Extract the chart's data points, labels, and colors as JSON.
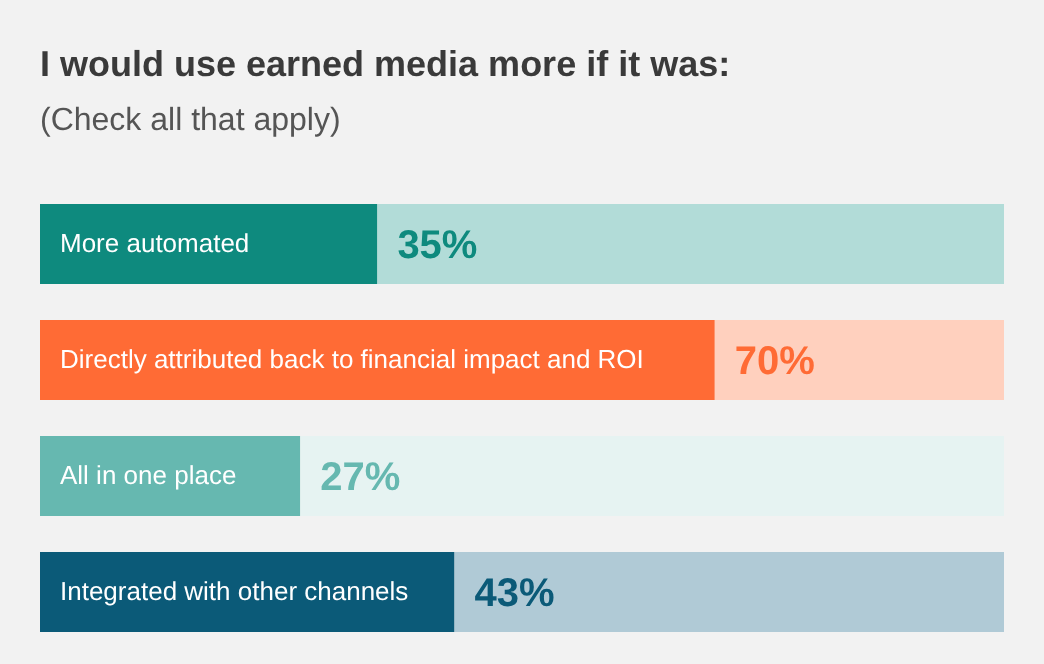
{
  "chart_data": {
    "type": "bar",
    "orientation": "horizontal",
    "stacked": true,
    "title": "I would use earned media more if it was:",
    "subtitle": "(Check all that apply)",
    "categories": [
      "More automated",
      "Directly attributed back to financial impact and ROI",
      "All in one place",
      "Integrated with other channels"
    ],
    "series": [
      {
        "values": [
          35,
          70,
          27,
          43
        ],
        "colors": [
          "#0e8a7e",
          "#ff6b35",
          "#66b8b0",
          "#0b5a78"
        ],
        "value_labels": [
          "35%",
          "70%",
          "27%",
          "43%"
        ]
      },
      {
        "values": [
          65,
          30,
          73,
          57
        ],
        "colors": [
          "#b2dcd8",
          "#ffd0be",
          "#e6f3f2",
          "#b0cad6"
        ]
      }
    ],
    "xlim": [
      0,
      100
    ],
    "tick_labels": false,
    "grid": false,
    "legend": false
  }
}
